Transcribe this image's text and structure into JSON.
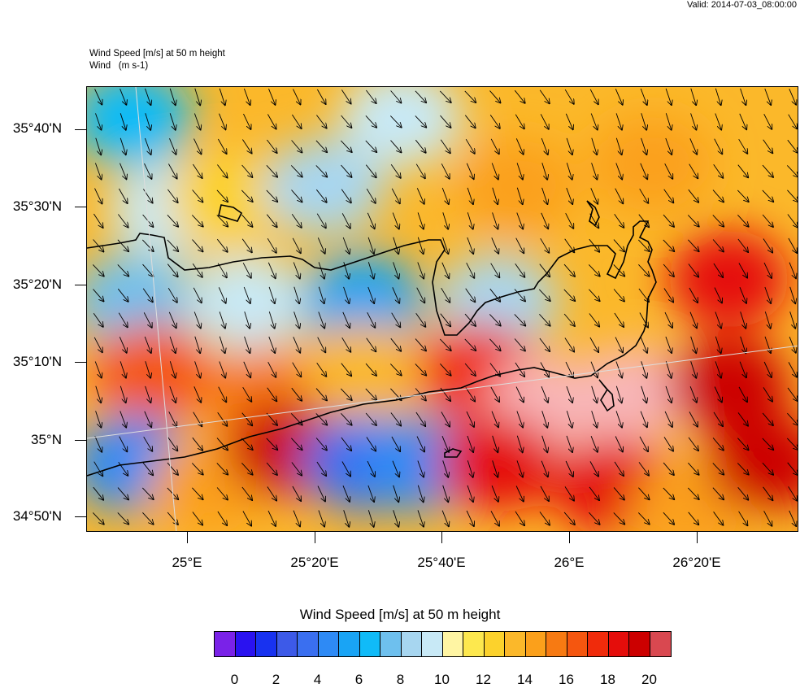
{
  "valid_time": "Valid: 2014-07-03_08:00:00",
  "header": {
    "line1": "Wind Speed [m/s] at 50 m height",
    "line2": "Wind   (m s-1)"
  },
  "axes": {
    "lat_labels": [
      "35°40'N",
      "35°30'N",
      "35°20'N",
      "35°10'N",
      "35°N",
      "34°50'N"
    ],
    "lon_labels": [
      "25°E",
      "25°20'E",
      "25°40'E",
      "26°E",
      "26°20'E"
    ]
  },
  "legend": {
    "title": "Wind Speed [m/s] at 50 m height",
    "ticks": [
      "0",
      "2",
      "4",
      "6",
      "8",
      "10",
      "12",
      "14",
      "16",
      "18",
      "20"
    ],
    "colors": [
      "#7a22e8",
      "#2a12f0",
      "#1832f0",
      "#3d5ae8",
      "#3a6ff0",
      "#2e8af5",
      "#19a4f5",
      "#10bbf8",
      "#6ec0ee",
      "#a7d6f0",
      "#c8e9f6",
      "#fff5a3",
      "#fde84e",
      "#fcd22c",
      "#fbb82a",
      "#fba01b",
      "#f77a12",
      "#f5560f",
      "#f02b0b",
      "#e50d0b",
      "#cc0000",
      "#d94850",
      "#f8b6b8"
    ]
  },
  "chart_data": {
    "type": "heatmap",
    "variable": "Wind Speed [m/s] at 50 m height",
    "units": "m/s",
    "color_range": [
      0,
      21
    ],
    "lat_range": [
      "34°48'N",
      "35°46'N"
    ],
    "lon_range": [
      "24°44'E",
      "26°35'E"
    ],
    "approx_field": [
      {
        "lon": 24.85,
        "lat": 35.7,
        "value": 7
      },
      {
        "lon": 24.95,
        "lat": 35.5,
        "value": 10
      },
      {
        "lon": 25.1,
        "lat": 35.52,
        "value": 12
      },
      {
        "lon": 25.35,
        "lat": 35.55,
        "value": 9
      },
      {
        "lon": 25.55,
        "lat": 35.7,
        "value": 10
      },
      {
        "lon": 25.85,
        "lat": 35.55,
        "value": 14
      },
      {
        "lon": 26.2,
        "lat": 35.6,
        "value": 14
      },
      {
        "lon": 26.4,
        "lat": 35.35,
        "value": 18
      },
      {
        "lon": 24.85,
        "lat": 35.3,
        "value": 8
      },
      {
        "lon": 25.15,
        "lat": 35.3,
        "value": 10
      },
      {
        "lon": 25.45,
        "lat": 35.3,
        "value": 6
      },
      {
        "lon": 25.8,
        "lat": 35.3,
        "value": 9
      },
      {
        "lon": 24.9,
        "lat": 35.15,
        "value": 16
      },
      {
        "lon": 25.2,
        "lat": 35.1,
        "value": 15
      },
      {
        "lon": 25.45,
        "lat": 35.15,
        "value": 13
      },
      {
        "lon": 25.75,
        "lat": 35.15,
        "value": 17
      },
      {
        "lon": 25.93,
        "lat": 35.08,
        "value": 21
      },
      {
        "lon": 26.15,
        "lat": 35.1,
        "value": 21
      },
      {
        "lon": 26.4,
        "lat": 35.12,
        "value": 19
      },
      {
        "lon": 24.85,
        "lat": 34.95,
        "value": 5
      },
      {
        "lon": 25.05,
        "lat": 34.9,
        "value": 14
      },
      {
        "lon": 25.25,
        "lat": 34.98,
        "value": 19
      },
      {
        "lon": 25.45,
        "lat": 34.95,
        "value": 4
      },
      {
        "lon": 25.6,
        "lat": 34.95,
        "value": 5
      },
      {
        "lon": 25.8,
        "lat": 34.95,
        "value": 18
      },
      {
        "lon": 26.1,
        "lat": 34.9,
        "value": 18
      },
      {
        "lon": 26.3,
        "lat": 34.85,
        "value": 14
      },
      {
        "lon": 26.5,
        "lat": 34.95,
        "value": 19
      }
    ],
    "wind_direction": "north-northwest"
  }
}
